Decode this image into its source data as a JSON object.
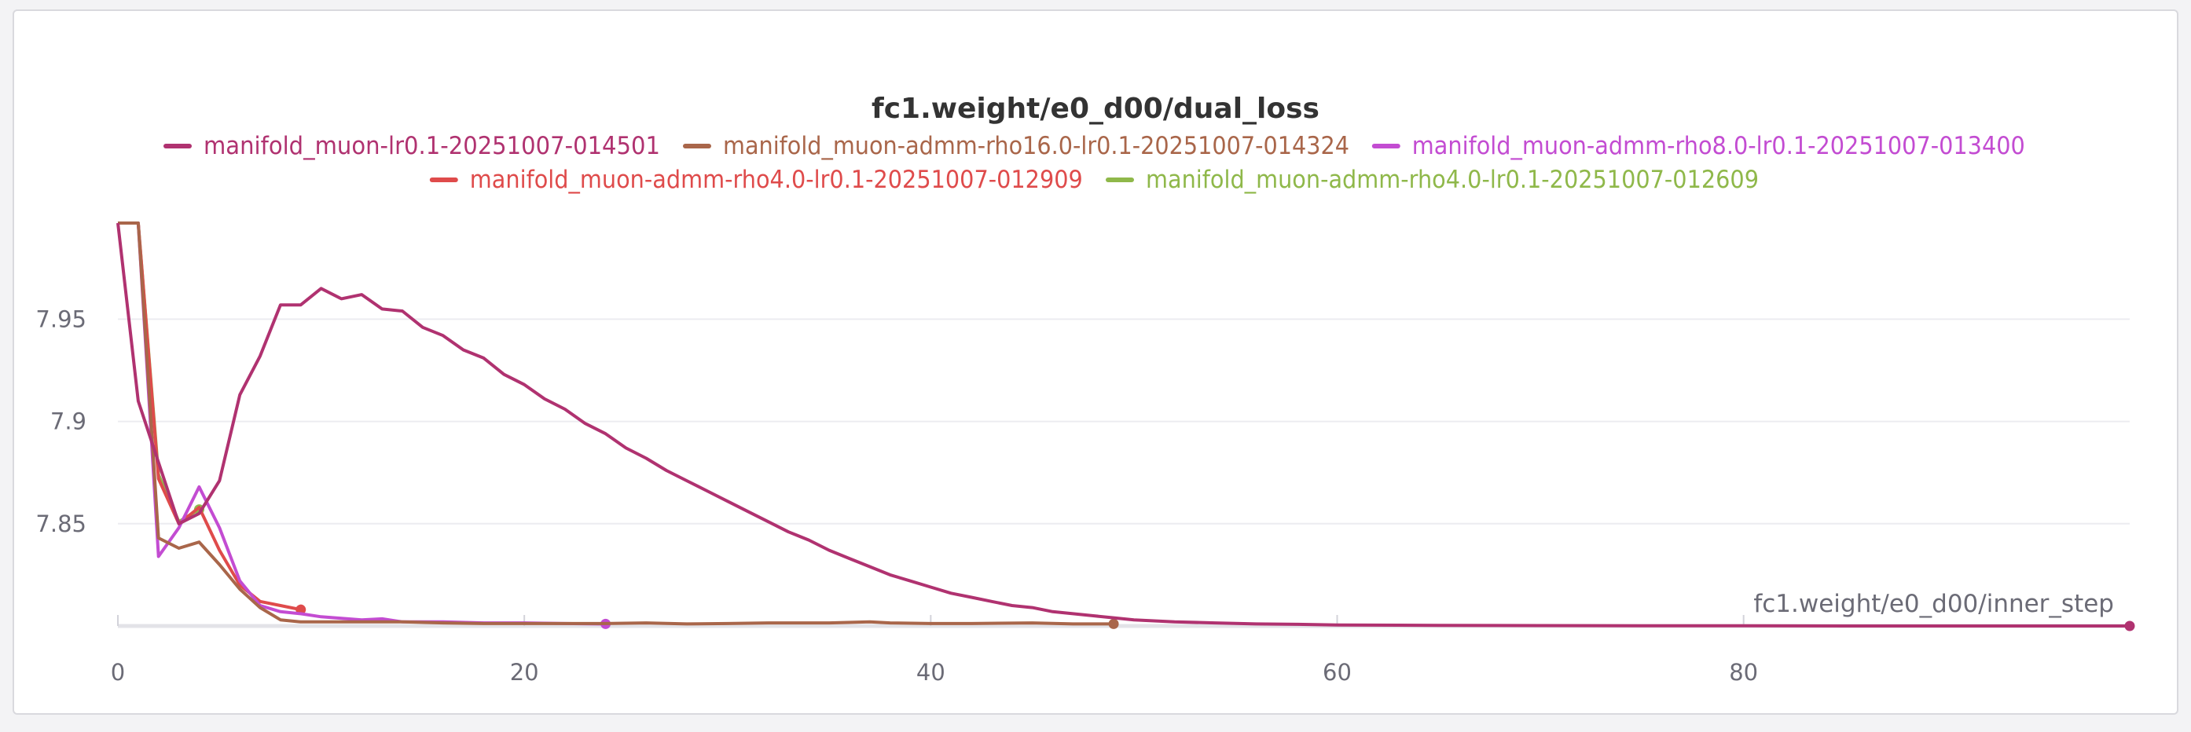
{
  "chart_data": {
    "type": "line",
    "title": "fc1.weight/e0_d00/dual_loss",
    "xlabel": "fc1.weight/e0_d00/inner_step",
    "ylabel": "",
    "xlim": [
      0,
      99
    ],
    "ylim": [
      7.8,
      7.997
    ],
    "x_ticks": [
      0,
      20,
      40,
      60,
      80
    ],
    "y_ticks": [
      7.85,
      7.9,
      7.95
    ],
    "y_tick_labels": [
      "7.85",
      "7.9",
      "7.95"
    ],
    "grid": true,
    "legend_position": "top",
    "series": [
      {
        "name": "manifold_muon-lr0.1-20251007-014501",
        "color": "#b03270",
        "x": [
          0,
          1,
          2,
          3,
          4,
          5,
          6,
          7,
          8,
          9,
          10,
          11,
          12,
          13,
          14,
          15,
          16,
          17,
          18,
          19,
          20,
          21,
          22,
          23,
          24,
          25,
          26,
          27,
          28,
          29,
          30,
          31,
          32,
          33,
          34,
          35,
          36,
          37,
          38,
          39,
          40,
          41,
          42,
          43,
          44,
          45,
          46,
          47,
          48,
          49,
          50,
          52,
          54,
          56,
          58,
          60,
          65,
          70,
          75,
          80,
          85,
          90,
          95,
          99
        ],
        "y": [
          7.997,
          7.91,
          7.88,
          7.85,
          7.855,
          7.871,
          7.913,
          7.932,
          7.957,
          7.957,
          7.965,
          7.96,
          7.962,
          7.955,
          7.954,
          7.946,
          7.942,
          7.935,
          7.931,
          7.923,
          7.918,
          7.911,
          7.906,
          7.899,
          7.894,
          7.887,
          7.882,
          7.876,
          7.871,
          7.866,
          7.861,
          7.856,
          7.851,
          7.846,
          7.842,
          7.837,
          7.833,
          7.829,
          7.825,
          7.822,
          7.819,
          7.816,
          7.814,
          7.812,
          7.81,
          7.809,
          7.807,
          7.806,
          7.805,
          7.804,
          7.803,
          7.802,
          7.8015,
          7.801,
          7.8008,
          7.8005,
          7.8003,
          7.8002,
          7.8001,
          7.8001,
          7.8,
          7.8,
          7.8,
          7.8
        ]
      },
      {
        "name": "manifold_muon-admm-rho16.0-lr0.1-20251007-014324",
        "color": "#a9664a",
        "x": [
          0,
          1,
          2,
          3,
          4,
          5,
          6,
          7,
          8,
          9,
          10,
          12,
          14,
          16,
          18,
          20,
          22,
          24,
          26,
          28,
          30,
          32,
          35,
          37,
          38,
          40,
          42,
          45,
          47,
          49
        ],
        "y": [
          7.997,
          7.997,
          7.843,
          7.838,
          7.841,
          7.83,
          7.818,
          7.809,
          7.803,
          7.802,
          7.802,
          7.802,
          7.802,
          7.8015,
          7.8012,
          7.8012,
          7.8012,
          7.8012,
          7.8015,
          7.801,
          7.8012,
          7.8015,
          7.8015,
          7.802,
          7.8015,
          7.8012,
          7.8012,
          7.8015,
          7.801,
          7.801
        ]
      },
      {
        "name": "manifold_muon-admm-rho8.0-lr0.1-20251007-013400",
        "color": "#c34cd2",
        "x": [
          0,
          1,
          2,
          3,
          4,
          5,
          6,
          7,
          8,
          9,
          10,
          12,
          13,
          14,
          16,
          18,
          20,
          22,
          24
        ],
        "y": [
          7.997,
          7.997,
          7.834,
          7.848,
          7.868,
          7.848,
          7.822,
          7.81,
          7.807,
          7.806,
          7.8045,
          7.803,
          7.8035,
          7.802,
          7.802,
          7.8015,
          7.8015,
          7.8012,
          7.801
        ]
      },
      {
        "name": "manifold_muon-admm-rho4.0-lr0.1-20251007-012909",
        "color": "#df4b4b",
        "x": [
          0,
          1,
          2,
          3,
          4,
          5,
          6,
          7,
          8,
          9
        ],
        "y": [
          7.997,
          7.997,
          7.872,
          7.85,
          7.858,
          7.837,
          7.82,
          7.812,
          7.81,
          7.808
        ]
      },
      {
        "name": "manifold_muon-admm-rho4.0-lr0.1-20251007-012609",
        "color": "#8fb84a",
        "x": [
          0,
          1,
          2,
          3,
          4
        ],
        "y": [
          7.997,
          7.997,
          7.874,
          7.851,
          7.857
        ]
      }
    ]
  }
}
